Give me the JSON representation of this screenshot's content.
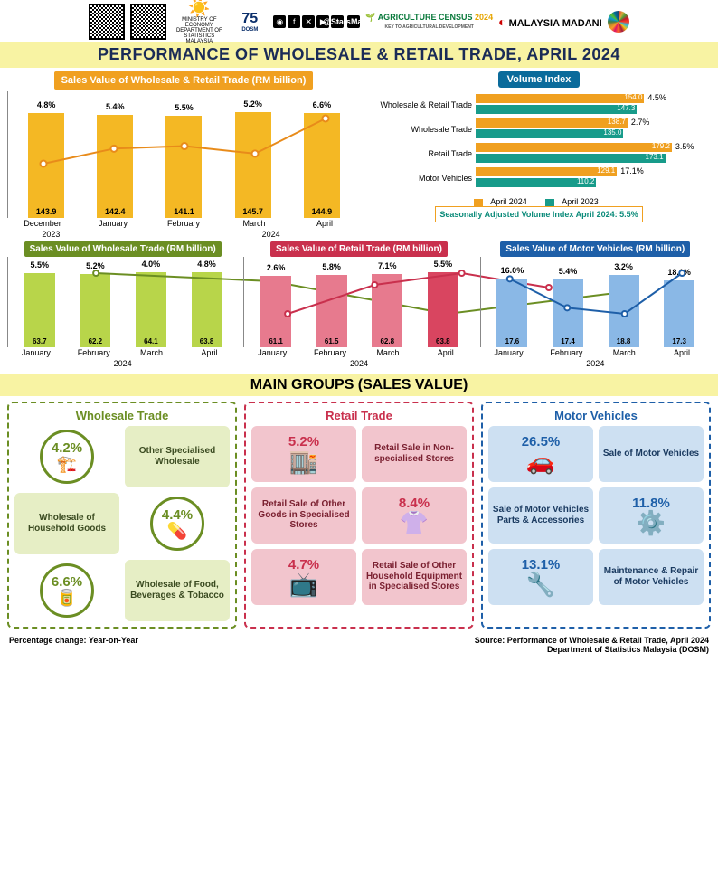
{
  "header": {
    "ministry": "MINISTRY OF ECONOMY\nDEPARTMENT OF STATISTICS MALAYSIA",
    "handle": "@StatsMalaysia",
    "agcensus": "AGRICULTURE CENSUS",
    "agcensus_year": "2024",
    "madani": "MALAYSIA MADANI",
    "title": "PERFORMANCE OF WHOLESALE & RETAIL TRADE, APRIL 2024"
  },
  "sales_main": {
    "title": "Sales Value of Wholesale & Retail Trade (RM billion)",
    "title_bg": "#f0a020",
    "bar_color": "#f4b824",
    "highlight_color": "#f4b824",
    "line_color": "#e88b1a",
    "categories": [
      "December",
      "January",
      "February",
      "March",
      "April"
    ],
    "year_below": [
      "2023",
      "",
      "",
      "2024",
      ""
    ],
    "year_segments": [
      {
        "text": "2023",
        "span": 1
      },
      {
        "text": "2024",
        "span": 4
      }
    ],
    "values": [
      143.9,
      142.4,
      141.1,
      145.7,
      144.9
    ],
    "pct": [
      "4.8%",
      "5.4%",
      "5.5%",
      "5.2%",
      "6.6%"
    ],
    "ymax": 150
  },
  "volume": {
    "title": "Volume Index",
    "title_bg": "#0b6b9b",
    "rows": [
      {
        "label": "Wholesale & Retail Trade",
        "v24": 154.0,
        "v23": 147.3,
        "pct": "4.5%"
      },
      {
        "label": "Wholesale Trade",
        "v24": 138.7,
        "v23": 135.0,
        "pct": "2.7%"
      },
      {
        "label": "Retail Trade",
        "v24": 179.2,
        "v23": 173.1,
        "pct": "3.5%"
      },
      {
        "label": "Motor Vehicles",
        "v24": 129.1,
        "v23": 110.2,
        "pct": "17.1%"
      }
    ],
    "max": 190,
    "color24": "#f0a020",
    "color23": "#179b8a",
    "legend24": "April 2024",
    "legend23": "April 2023",
    "sa_text": "Seasonally Adjusted Volume Index April 2024: 5.5%"
  },
  "mid": [
    {
      "title": "Sales Value of Wholesale Trade (RM billion)",
      "title_bg": "#6b8e23",
      "bar_color": "#b8d54a",
      "line_color": "#6b8e23",
      "categories": [
        "January",
        "February",
        "March",
        "April"
      ],
      "year": "2024",
      "values": [
        63.7,
        62.2,
        64.1,
        63.8
      ],
      "pct": [
        "5.5%",
        "5.2%",
        "4.0%",
        "4.8%"
      ],
      "ymax": 66
    },
    {
      "title": "Sales Value of Retail Trade (RM billion)",
      "title_bg": "#c9304d",
      "bar_color": "#e77a8e",
      "highlight_last": "#d94560",
      "line_color": "#c9304d",
      "categories": [
        "January",
        "February",
        "March",
        "April"
      ],
      "year": "2024",
      "values": [
        61.1,
        61.5,
        62.8,
        63.8
      ],
      "pct": [
        "2.6%",
        "5.8%",
        "7.1%",
        "5.5%"
      ],
      "ymax": 66
    },
    {
      "title": "Sales Value of Motor Vehicles (RM billion)",
      "title_bg": "#1e5fa8",
      "bar_color": "#8ab8e6",
      "line_color": "#1e5fa8",
      "categories": [
        "January",
        "February",
        "March",
        "April"
      ],
      "year": "2024",
      "values": [
        17.6,
        17.4,
        18.8,
        17.3
      ],
      "pct": [
        "16.0%",
        "5.4%",
        "3.2%",
        "18.1%"
      ],
      "ymax": 20
    }
  ],
  "section_title": "MAIN GROUPS (SALES VALUE)",
  "groups": [
    {
      "name": "Wholesale Trade",
      "border": "#6b8e23",
      "title_color": "#6b8e23",
      "cell_bg": "#e6eec5",
      "pct_color": "#6b8e23",
      "items": [
        {
          "type": "icon",
          "pct": "4.2%",
          "icon": "🏗️"
        },
        {
          "type": "text",
          "label": "Other Specialised Wholesale"
        },
        {
          "type": "text",
          "label": "Wholesale of Household Goods"
        },
        {
          "type": "icon",
          "pct": "4.4%",
          "icon": "💊"
        },
        {
          "type": "icon",
          "pct": "6.6%",
          "icon": "🥫"
        },
        {
          "type": "text",
          "label": "Wholesale of Food, Beverages & Tobacco"
        }
      ]
    },
    {
      "name": "Retail Trade",
      "border": "#c9304d",
      "title_color": "#c9304d",
      "cell_bg": "#f2c5cd",
      "pct_color": "#c9304d",
      "items": [
        {
          "type": "icon",
          "pct": "5.2%",
          "icon": "🏬"
        },
        {
          "type": "text",
          "label": "Retail Sale in Non-specialised Stores"
        },
        {
          "type": "text",
          "label": "Retail Sale of Other Goods in Specialised Stores"
        },
        {
          "type": "icon",
          "pct": "8.4%",
          "icon": "👚"
        },
        {
          "type": "icon",
          "pct": "4.7%",
          "icon": "📺"
        },
        {
          "type": "text",
          "label": "Retail Sale of Other Household Equipment in Specialised Stores"
        }
      ]
    },
    {
      "name": "Motor Vehicles",
      "border": "#1e5fa8",
      "title_color": "#1e5fa8",
      "cell_bg": "#cde0f2",
      "pct_color": "#1e5fa8",
      "items": [
        {
          "type": "icon",
          "pct": "26.5%",
          "icon": "🚗"
        },
        {
          "type": "text",
          "label": "Sale of Motor Vehicles"
        },
        {
          "type": "text",
          "label": "Sale of Motor Vehicles Parts & Accessories"
        },
        {
          "type": "icon",
          "pct": "11.8%",
          "icon": "⚙️"
        },
        {
          "type": "icon",
          "pct": "13.1%",
          "icon": "🔧"
        },
        {
          "type": "text",
          "label": "Maintenance & Repair of Motor Vehicles"
        }
      ]
    }
  ],
  "footer": {
    "left": "Percentage change: Year-on-Year",
    "right1": "Source: Performance of Wholesale & Retail Trade, April 2024",
    "right2": "Department of Statistics Malaysia (DOSM)"
  }
}
